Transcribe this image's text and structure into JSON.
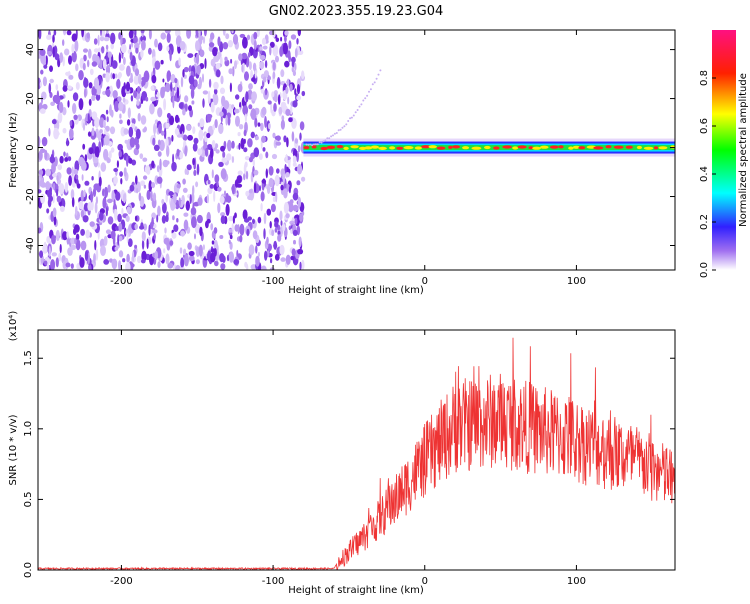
{
  "title": "GN02.2023.355.19.23.G04",
  "chart_data": [
    {
      "type": "heatmap",
      "xlabel": "Height of straight line (km)",
      "ylabel": "Frequency (Hz)",
      "xlim": [
        -255,
        165
      ],
      "ylim": [
        -50,
        48
      ],
      "xticks": [
        -200,
        -100,
        0,
        100
      ],
      "yticks": [
        -40,
        -20,
        0,
        20,
        40
      ],
      "noise_region_x": [
        -255,
        -80
      ],
      "signal_region_x": [
        -80,
        165
      ],
      "signal_frequency": 0,
      "colorbar": {
        "label": "Normalized spectral amplitude",
        "range": [
          0,
          1
        ],
        "ticks": [
          "0.0",
          "0.2",
          "0.4",
          "0.6",
          "0.8"
        ],
        "colors": [
          "#ffffff",
          "#8a2be2",
          "#0000ff",
          "#00ffff",
          "#00ff00",
          "#ffff00",
          "#ff0000",
          "#ff1493"
        ]
      }
    },
    {
      "type": "line",
      "xlabel": "Height of straight line (km)",
      "ylabel": "SNR (10 * v/v)",
      "y_multiplier": "(x10⁴)",
      "xlim": [
        -255,
        165
      ],
      "ylim": [
        0,
        1.7
      ],
      "xticks": [
        -200,
        -100,
        0,
        100
      ],
      "yticks": [
        "0.0",
        "0.5",
        "1.0",
        "1.5"
      ],
      "color": "#ee3333",
      "trend": [
        {
          "x": -255,
          "y": 0.01
        },
        {
          "x": -60,
          "y": 0.01
        },
        {
          "x": -55,
          "y": 0.08
        },
        {
          "x": -40,
          "y": 0.25
        },
        {
          "x": -20,
          "y": 0.5
        },
        {
          "x": 0,
          "y": 0.8
        },
        {
          "x": 20,
          "y": 1.05
        },
        {
          "x": 50,
          "y": 1.1
        },
        {
          "x": 100,
          "y": 0.95
        },
        {
          "x": 140,
          "y": 0.8
        },
        {
          "x": 165,
          "y": 0.65
        }
      ]
    }
  ]
}
